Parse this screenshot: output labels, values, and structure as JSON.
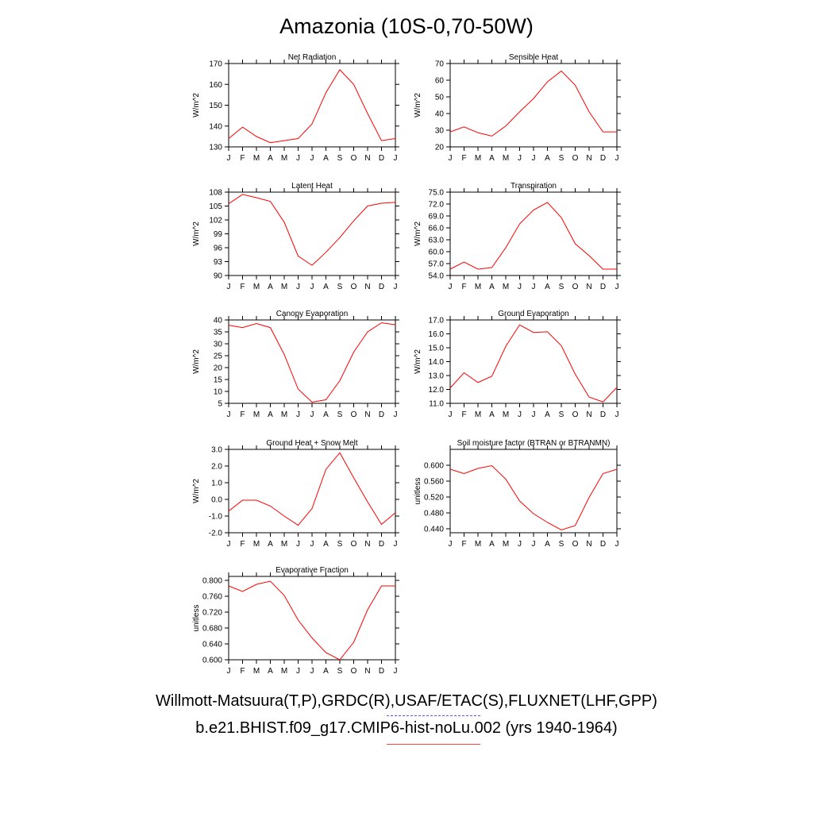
{
  "title": "Amazonia (10S-0,70-50W)",
  "months": [
    "J",
    "F",
    "M",
    "A",
    "M",
    "J",
    "J",
    "A",
    "S",
    "O",
    "N",
    "D",
    "J"
  ],
  "legend": {
    "line1": "Willmott-Matsuura(T,P),GRDC(R),USAF/ETAC(S),FLUXNET(LHF,GPP)",
    "line2": "b.e21.BHIST.f09_g17.CMIP6-hist-noLu.002 (yrs 1940-1964)",
    "obs_color": "#5555ff",
    "model_color": "#ff0000"
  },
  "chart_data": [
    {
      "type": "line",
      "title": "Net Radiation",
      "ylabel": "W/m^2",
      "ylim": [
        130,
        170
      ],
      "yticks": [
        "130",
        "140",
        "150",
        "160",
        "170"
      ],
      "series": [
        {
          "name": "b.e21.BHIST.f09_g17.CMIP6-hist-noLu.002",
          "color": "#ff0000",
          "values": [
            134,
            139.5,
            135,
            132,
            133,
            134,
            141,
            156,
            167,
            160,
            146,
            133,
            134
          ]
        }
      ]
    },
    {
      "type": "line",
      "title": "Sensible Heat",
      "ylabel": "W/m^2",
      "ylim": [
        20,
        70
      ],
      "yticks": [
        "20",
        "30",
        "40",
        "50",
        "60",
        "70"
      ],
      "series": [
        {
          "name": "b.e21.BHIST.f09_g17.CMIP6-hist-noLu.002",
          "color": "#ff0000",
          "values": [
            29,
            32,
            28.5,
            26.5,
            32.5,
            41,
            49,
            59,
            65.5,
            57,
            41,
            29,
            29
          ]
        }
      ]
    },
    {
      "type": "line",
      "title": "Latent Heat",
      "ylabel": "W/m^2",
      "ylim": [
        90,
        108
      ],
      "yticks": [
        "90",
        "93",
        "96",
        "99",
        "102",
        "105",
        "108"
      ],
      "series": [
        {
          "name": "b.e21.BHIST.f09_g17.CMIP6-hist-noLu.002",
          "color": "#ff0000",
          "values": [
            105.5,
            107.5,
            106.8,
            106,
            101.5,
            94.2,
            92.2,
            95,
            98.2,
            101.8,
            105,
            105.6,
            105.8
          ]
        }
      ]
    },
    {
      "type": "line",
      "title": "Transpiration",
      "ylabel": "W/m^2",
      "ylim": [
        54,
        75
      ],
      "yticks": [
        "54.0",
        "57.0",
        "60.0",
        "63.0",
        "66.0",
        "69.0",
        "72.0",
        "75.0"
      ],
      "series": [
        {
          "name": "b.e21.BHIST.f09_g17.CMIP6-hist-noLu.002",
          "color": "#ff0000",
          "values": [
            55.6,
            57.4,
            55.6,
            56,
            61,
            67,
            70.5,
            72.4,
            68.6,
            62,
            59,
            55.6,
            55.6
          ]
        }
      ]
    },
    {
      "type": "line",
      "title": "Canopy Evaporation",
      "ylabel": "W/m^2",
      "ylim": [
        5,
        40
      ],
      "yticks": [
        "5",
        "10",
        "15",
        "20",
        "25",
        "30",
        "35",
        "40"
      ],
      "series": [
        {
          "name": "b.e21.BHIST.f09_g17.CMIP6-hist-noLu.002",
          "color": "#ff0000",
          "values": [
            37.8,
            36.8,
            38.5,
            36.8,
            25.5,
            11,
            5.5,
            6.5,
            14.5,
            26.5,
            35,
            38.8,
            38
          ]
        }
      ]
    },
    {
      "type": "line",
      "title": "Ground Evaporation",
      "ylabel": "W/m^2",
      "ylim": [
        11,
        17
      ],
      "yticks": [
        "11.0",
        "12.0",
        "13.0",
        "14.0",
        "15.0",
        "16.0",
        "17.0"
      ],
      "series": [
        {
          "name": "b.e21.BHIST.f09_g17.CMIP6-hist-noLu.002",
          "color": "#ff0000",
          "values": [
            12.1,
            13.2,
            12.5,
            12.95,
            15.1,
            16.65,
            16.1,
            16.15,
            15.15,
            13.1,
            11.45,
            11.1,
            12.15
          ]
        }
      ]
    },
    {
      "type": "line",
      "title": "Ground Heat + Snow Melt",
      "ylabel": "W/m^2",
      "ylim": [
        -2,
        3
      ],
      "yticks": [
        "-2.0",
        "-1.0",
        "0.0",
        "1.0",
        "2.0",
        "3.0"
      ],
      "series": [
        {
          "name": "b.e21.BHIST.f09_g17.CMIP6-hist-noLu.002",
          "color": "#ff0000",
          "values": [
            -0.7,
            -0.05,
            -0.05,
            -0.4,
            -1,
            -1.55,
            -0.55,
            1.8,
            2.8,
            1.3,
            -0.15,
            -1.5,
            -0.8
          ]
        }
      ]
    },
    {
      "type": "line",
      "title": "Soil moisture factor (BTRAN or BTRANMN)",
      "ylabel": "unitless",
      "ylim": [
        0.43,
        0.64
      ],
      "yticks": [
        "0.440",
        "0.480",
        "0.520",
        "0.560",
        "0.600"
      ],
      "series": [
        {
          "name": "b.e21.BHIST.f09_g17.CMIP6-hist-noLu.002",
          "color": "#ff0000",
          "values": [
            0.59,
            0.579,
            0.592,
            0.599,
            0.565,
            0.51,
            0.478,
            0.456,
            0.437,
            0.448,
            0.519,
            0.579,
            0.59
          ]
        }
      ]
    },
    {
      "type": "line",
      "title": "Evaporative Fraction",
      "ylabel": "unitless",
      "ylim": [
        0.6,
        0.81
      ],
      "yticks": [
        "0.600",
        "0.640",
        "0.680",
        "0.720",
        "0.760",
        "0.800"
      ],
      "series": [
        {
          "name": "b.e21.BHIST.f09_g17.CMIP6-hist-noLu.002",
          "color": "#ff0000",
          "values": [
            0.786,
            0.772,
            0.79,
            0.798,
            0.762,
            0.7,
            0.655,
            0.618,
            0.6,
            0.644,
            0.726,
            0.786,
            0.786
          ]
        }
      ]
    }
  ]
}
